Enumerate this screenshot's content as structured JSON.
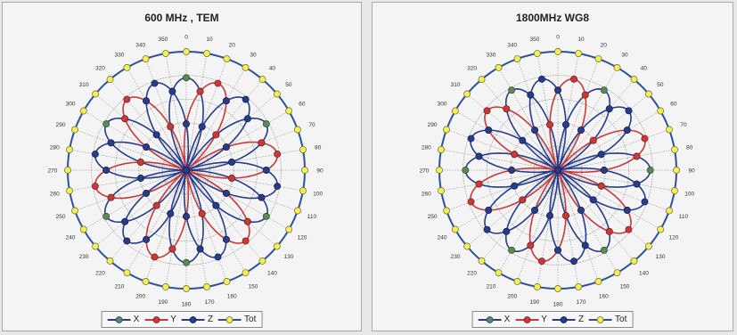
{
  "colors": {
    "X": "#5a8a5a",
    "Y": "#c83a3a",
    "Z": "#283c8c",
    "Tot": "#f2ef5a",
    "Tot_line": "#2d4fa0"
  },
  "chart_data": [
    {
      "type": "polar",
      "title": "600 MHz , TEM",
      "angle_ticks": [
        "0",
        "10",
        "20",
        "30",
        "40",
        "50",
        "60",
        "70",
        "80",
        "90",
        "100",
        "110",
        "120",
        "130",
        "140",
        "150",
        "160",
        "170",
        "180",
        "190",
        "200",
        "210",
        "220",
        "230",
        "240",
        "250",
        "260",
        "270",
        "280",
        "290",
        "300",
        "310",
        "320",
        "330",
        "340",
        "350"
      ],
      "series": [
        {
          "name": "X",
          "pattern": "six_petal",
          "peak": 0.78,
          "phase_deg": 0
        },
        {
          "name": "Y",
          "pattern": "six_petal",
          "peak": 0.78,
          "phase_deg": 20
        },
        {
          "name": "Z",
          "pattern": "six_petal",
          "peak": 0.78,
          "phase_deg": 40
        },
        {
          "name": "Tot",
          "pattern": "circle",
          "value": 1.0
        }
      ],
      "legend": [
        "X",
        "Y",
        "Z",
        "Tot"
      ],
      "legend_position": "bottom"
    },
    {
      "type": "polar",
      "title": "1800MHz WG8",
      "angle_ticks": [
        "0",
        "10",
        "20",
        "30",
        "40",
        "50",
        "60",
        "70",
        "80",
        "90",
        "100",
        "110",
        "120",
        "130",
        "140",
        "150",
        "160",
        "170",
        "180",
        "190",
        "200",
        "210",
        "220",
        "230",
        "240",
        "250",
        "260",
        "270",
        "280",
        "290",
        "300",
        "310",
        "320",
        "330",
        "340",
        "350"
      ],
      "series": [
        {
          "name": "X",
          "pattern": "six_petal",
          "peak": 0.78,
          "phase_deg": 30
        },
        {
          "name": "Y",
          "pattern": "six_petal",
          "peak": 0.78,
          "phase_deg": 10
        },
        {
          "name": "Z",
          "pattern": "six_petal",
          "peak": 0.78,
          "phase_deg": 50
        },
        {
          "name": "Tot",
          "pattern": "circle",
          "value": 1.0
        }
      ],
      "legend": [
        "X",
        "Y",
        "Z",
        "Tot"
      ],
      "legend_position": "bottom"
    }
  ]
}
